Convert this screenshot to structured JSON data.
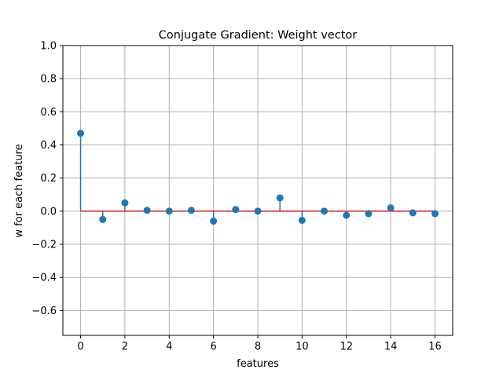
{
  "chart_data": {
    "type": "stem",
    "title": "Conjugate Gradient: Weight vector",
    "xlabel": "features",
    "ylabel": "w for each feature",
    "xlim": [
      -0.8,
      16.8
    ],
    "ylim": [
      -0.75,
      1.0
    ],
    "xticks": [
      0,
      2,
      4,
      6,
      8,
      10,
      12,
      14,
      16
    ],
    "yticks": [
      -0.6,
      -0.4,
      -0.2,
      0.0,
      0.2,
      0.4,
      0.6,
      0.8,
      1.0
    ],
    "ytick_labels": [
      "−0.6",
      "−0.4",
      "−0.2",
      "0.0",
      "0.2",
      "0.4",
      "0.6",
      "0.8",
      "1.0"
    ],
    "grid": true,
    "baseline": 0.0,
    "colors": {
      "marker": "#1f77b4",
      "stem": "#1f77b4",
      "baseline": "#d62728",
      "grid": "#b0b0b0"
    },
    "x": [
      0,
      1,
      2,
      3,
      4,
      5,
      6,
      7,
      8,
      9,
      10,
      11,
      12,
      13,
      14,
      15,
      16
    ],
    "values": [
      0.47,
      -0.05,
      0.05,
      0.005,
      0.0,
      0.005,
      -0.06,
      0.01,
      0.0,
      0.08,
      -0.055,
      0.0,
      -0.025,
      -0.015,
      0.02,
      -0.01,
      -0.015
    ]
  }
}
